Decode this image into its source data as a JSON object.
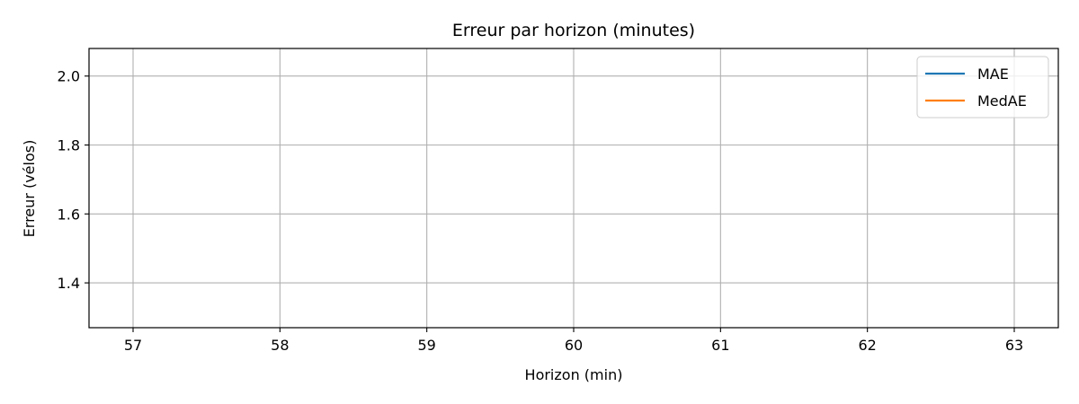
{
  "chart_data": {
    "type": "line",
    "title": "Erreur par horizon (minutes)",
    "xlabel": "Horizon (min)",
    "ylabel": "Erreur (vélos)",
    "xlim": [
      56.7,
      63.3
    ],
    "ylim": [
      1.27,
      2.08
    ],
    "xticks": [
      57,
      58,
      59,
      60,
      61,
      62,
      63
    ],
    "yticks": [
      1.4,
      1.6,
      1.8,
      2.0
    ],
    "xtick_labels": [
      "57",
      "58",
      "59",
      "60",
      "61",
      "62",
      "63"
    ],
    "ytick_labels": [
      "1.4",
      "1.6",
      "1.8",
      "2.0"
    ],
    "grid": true,
    "legend_position": "top-right",
    "series": [
      {
        "name": "MAE",
        "color": "#1f77b4",
        "x": [],
        "y": []
      },
      {
        "name": "MedAE",
        "color": "#ff7f0e",
        "x": [],
        "y": []
      }
    ]
  }
}
